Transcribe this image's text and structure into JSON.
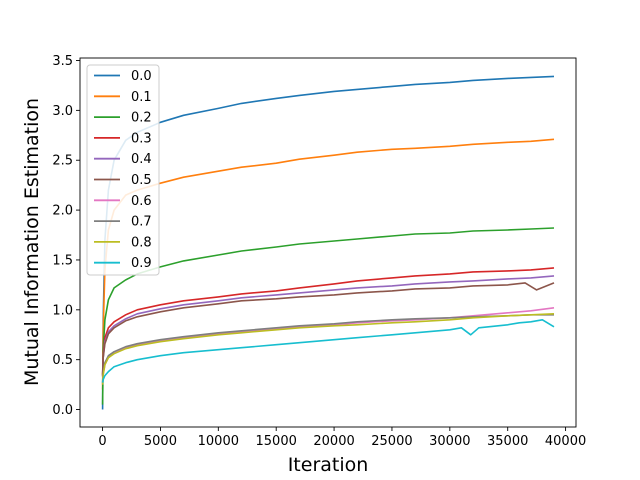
{
  "chart_data": {
    "type": "line",
    "title": "",
    "xlabel": "Iteration",
    "ylabel": "Mutual Information Estimation",
    "xlim": [
      -1950,
      40900
    ],
    "ylim": [
      -0.175,
      3.525
    ],
    "xticks": [
      0,
      5000,
      10000,
      15000,
      20000,
      25000,
      30000,
      35000,
      40000
    ],
    "xtick_labels": [
      "0",
      "5000",
      "10000",
      "15000",
      "20000",
      "25000",
      "30000",
      "35000",
      "40000"
    ],
    "yticks": [
      0.0,
      0.5,
      1.0,
      1.5,
      2.0,
      2.5,
      3.0,
      3.5
    ],
    "ytick_labels": [
      "0.0",
      "0.5",
      "1.0",
      "1.5",
      "2.0",
      "2.5",
      "3.0",
      "3.5"
    ],
    "grid": false,
    "legend_position": "top-left",
    "series": [
      {
        "name": "0.0",
        "color": "#1f77b4",
        "x": [
          0,
          50,
          200,
          500,
          1000,
          2000,
          3000,
          4000,
          5000,
          7000,
          10000,
          12000,
          15000,
          17000,
          20000,
          22000,
          25000,
          27000,
          30000,
          32000,
          35000,
          37000,
          39000
        ],
        "y": [
          0.0,
          0.9,
          1.7,
          2.2,
          2.5,
          2.7,
          2.78,
          2.83,
          2.88,
          2.95,
          3.02,
          3.07,
          3.12,
          3.15,
          3.19,
          3.21,
          3.24,
          3.26,
          3.28,
          3.3,
          3.32,
          3.33,
          3.34
        ]
      },
      {
        "name": "0.1",
        "color": "#ff7f0e",
        "x": [
          0,
          50,
          200,
          500,
          1000,
          2000,
          3000,
          5000,
          7000,
          10000,
          12000,
          15000,
          17000,
          20000,
          22000,
          25000,
          27000,
          30000,
          32000,
          35000,
          37000,
          39000
        ],
        "y": [
          0.2,
          0.8,
          1.4,
          1.8,
          2.0,
          2.15,
          2.2,
          2.27,
          2.33,
          2.39,
          2.43,
          2.47,
          2.51,
          2.55,
          2.58,
          2.61,
          2.62,
          2.64,
          2.66,
          2.68,
          2.69,
          2.71
        ]
      },
      {
        "name": "0.2",
        "color": "#2ca02c",
        "x": [
          0,
          50,
          200,
          500,
          1000,
          2000,
          3000,
          5000,
          7000,
          10000,
          12000,
          15000,
          17000,
          20000,
          22000,
          25000,
          27000,
          30000,
          32000,
          35000,
          37000,
          39000
        ],
        "y": [
          0.05,
          0.6,
          0.9,
          1.1,
          1.22,
          1.3,
          1.36,
          1.43,
          1.49,
          1.55,
          1.59,
          1.63,
          1.66,
          1.69,
          1.71,
          1.74,
          1.76,
          1.77,
          1.79,
          1.8,
          1.81,
          1.82
        ]
      },
      {
        "name": "0.3",
        "color": "#d62728",
        "x": [
          0,
          50,
          200,
          500,
          1000,
          2000,
          3000,
          5000,
          7000,
          10000,
          12000,
          15000,
          17000,
          20000,
          22000,
          25000,
          27000,
          30000,
          32000,
          35000,
          37000,
          39000
        ],
        "y": [
          0.35,
          0.55,
          0.72,
          0.82,
          0.88,
          0.95,
          1.0,
          1.05,
          1.09,
          1.13,
          1.16,
          1.19,
          1.22,
          1.26,
          1.29,
          1.32,
          1.34,
          1.36,
          1.38,
          1.39,
          1.4,
          1.42
        ]
      },
      {
        "name": "0.4",
        "color": "#9467bd",
        "x": [
          0,
          50,
          200,
          500,
          1000,
          2000,
          3000,
          5000,
          7000,
          10000,
          12000,
          15000,
          17000,
          20000,
          22000,
          25000,
          27000,
          30000,
          32000,
          35000,
          37000,
          39000
        ],
        "y": [
          0.33,
          0.52,
          0.68,
          0.78,
          0.84,
          0.91,
          0.96,
          1.01,
          1.05,
          1.09,
          1.12,
          1.15,
          1.17,
          1.2,
          1.22,
          1.24,
          1.26,
          1.28,
          1.29,
          1.31,
          1.32,
          1.34
        ]
      },
      {
        "name": "0.5",
        "color": "#8c564b",
        "x": [
          0,
          50,
          200,
          500,
          1000,
          2000,
          3000,
          5000,
          7000,
          10000,
          12000,
          15000,
          17000,
          20000,
          22000,
          25000,
          27000,
          30000,
          32000,
          35000,
          36500,
          37500,
          39000
        ],
        "y": [
          0.34,
          0.52,
          0.66,
          0.76,
          0.82,
          0.89,
          0.93,
          0.98,
          1.02,
          1.06,
          1.09,
          1.11,
          1.13,
          1.15,
          1.17,
          1.19,
          1.21,
          1.22,
          1.24,
          1.25,
          1.27,
          1.2,
          1.27
        ]
      },
      {
        "name": "0.6",
        "color": "#e377c2",
        "x": [
          0,
          50,
          200,
          500,
          1000,
          2000,
          3000,
          5000,
          7000,
          10000,
          12000,
          15000,
          17000,
          20000,
          22000,
          25000,
          27000,
          30000,
          32000,
          35000,
          37000,
          39000
        ],
        "y": [
          0.25,
          0.35,
          0.45,
          0.52,
          0.57,
          0.62,
          0.65,
          0.69,
          0.72,
          0.76,
          0.78,
          0.81,
          0.83,
          0.85,
          0.87,
          0.89,
          0.9,
          0.92,
          0.94,
          0.97,
          0.99,
          1.02
        ]
      },
      {
        "name": "0.7",
        "color": "#7f7f7f",
        "x": [
          0,
          50,
          200,
          500,
          1000,
          2000,
          3000,
          5000,
          7000,
          10000,
          12000,
          15000,
          17000,
          20000,
          22000,
          25000,
          27000,
          30000,
          32000,
          35000,
          37000,
          39000
        ],
        "y": [
          0.27,
          0.37,
          0.47,
          0.54,
          0.58,
          0.63,
          0.66,
          0.7,
          0.73,
          0.77,
          0.79,
          0.82,
          0.84,
          0.86,
          0.88,
          0.9,
          0.91,
          0.92,
          0.93,
          0.94,
          0.95,
          0.95
        ]
      },
      {
        "name": "0.8",
        "color": "#bcbd22",
        "x": [
          0,
          50,
          200,
          500,
          1000,
          2000,
          3000,
          5000,
          7000,
          10000,
          12000,
          15000,
          17000,
          20000,
          22000,
          25000,
          27000,
          30000,
          32000,
          35000,
          37000,
          39000
        ],
        "y": [
          0.25,
          0.35,
          0.45,
          0.52,
          0.56,
          0.61,
          0.64,
          0.68,
          0.71,
          0.75,
          0.77,
          0.8,
          0.82,
          0.84,
          0.85,
          0.87,
          0.88,
          0.9,
          0.92,
          0.94,
          0.95,
          0.96
        ]
      },
      {
        "name": "0.9",
        "color": "#17becf",
        "x": [
          0,
          50,
          200,
          500,
          1000,
          2000,
          3000,
          5000,
          7000,
          10000,
          12000,
          15000,
          17000,
          20000,
          22000,
          25000,
          27000,
          30000,
          31000,
          31800,
          32500,
          35000,
          36000,
          37000,
          38000,
          39000
        ],
        "y": [
          0.27,
          0.3,
          0.34,
          0.38,
          0.43,
          0.47,
          0.5,
          0.54,
          0.57,
          0.6,
          0.62,
          0.65,
          0.67,
          0.7,
          0.72,
          0.75,
          0.77,
          0.8,
          0.82,
          0.75,
          0.82,
          0.85,
          0.87,
          0.88,
          0.9,
          0.83
        ]
      }
    ]
  }
}
